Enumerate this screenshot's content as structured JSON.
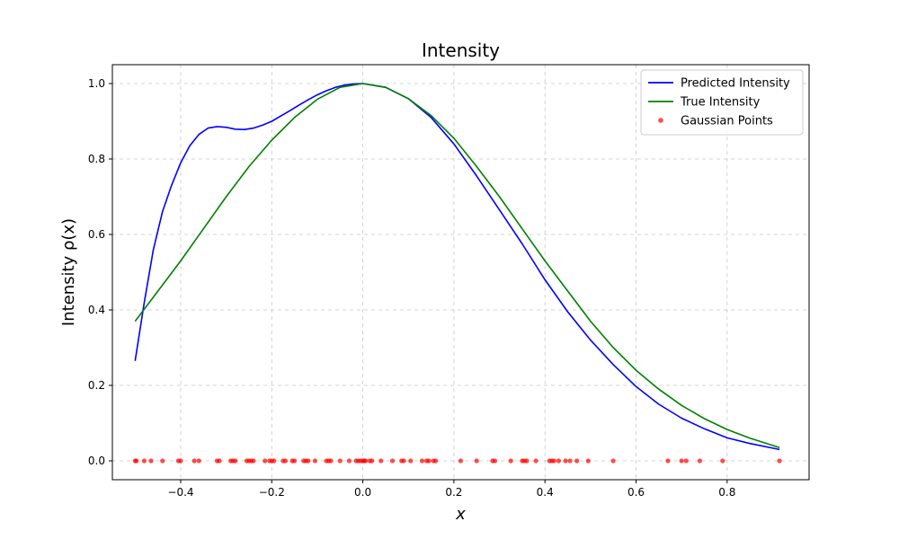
{
  "chart_data": {
    "type": "line",
    "title": "Intensity",
    "xlabel": "x",
    "ylabel": "Intensity ρ(x)",
    "xlim": [
      -0.55,
      0.98
    ],
    "ylim": [
      -0.05,
      1.05
    ],
    "x_ticks": [
      -0.4,
      -0.2,
      0.0,
      0.2,
      0.4,
      0.6,
      0.8
    ],
    "x_tick_labels": [
      "−0.4",
      "−0.2",
      "0.0",
      "0.2",
      "0.4",
      "0.6",
      "0.8"
    ],
    "y_ticks": [
      0.0,
      0.2,
      0.4,
      0.6,
      0.8,
      1.0
    ],
    "y_tick_labels": [
      "0.0",
      "0.2",
      "0.4",
      "0.6",
      "0.8",
      "1.0"
    ],
    "grid": true,
    "legend_position": "top-right",
    "series": [
      {
        "name": "Predicted Intensity",
        "color": "#0000ff",
        "kind": "line",
        "x": [
          -0.5,
          -0.48,
          -0.46,
          -0.44,
          -0.42,
          -0.4,
          -0.38,
          -0.36,
          -0.34,
          -0.32,
          -0.3,
          -0.28,
          -0.26,
          -0.24,
          -0.22,
          -0.2,
          -0.18,
          -0.16,
          -0.14,
          -0.12,
          -0.1,
          -0.08,
          -0.06,
          -0.04,
          -0.02,
          0.0,
          0.05,
          0.1,
          0.15,
          0.2,
          0.25,
          0.3,
          0.35,
          0.4,
          0.45,
          0.5,
          0.55,
          0.6,
          0.65,
          0.7,
          0.75,
          0.8,
          0.85,
          0.915
        ],
        "y": [
          0.265,
          0.42,
          0.56,
          0.66,
          0.73,
          0.79,
          0.835,
          0.865,
          0.882,
          0.886,
          0.884,
          0.879,
          0.878,
          0.882,
          0.89,
          0.9,
          0.914,
          0.928,
          0.943,
          0.957,
          0.97,
          0.981,
          0.99,
          0.996,
          0.999,
          1.0,
          0.99,
          0.96,
          0.91,
          0.84,
          0.755,
          0.665,
          0.575,
          0.48,
          0.395,
          0.32,
          0.255,
          0.197,
          0.15,
          0.113,
          0.085,
          0.061,
          0.046,
          0.03
        ]
      },
      {
        "name": "True Intensity",
        "color": "#008000",
        "kind": "line",
        "x": [
          -0.5,
          -0.45,
          -0.4,
          -0.35,
          -0.3,
          -0.25,
          -0.2,
          -0.15,
          -0.1,
          -0.05,
          0.0,
          0.05,
          0.1,
          0.15,
          0.2,
          0.25,
          0.3,
          0.35,
          0.4,
          0.45,
          0.5,
          0.55,
          0.6,
          0.65,
          0.7,
          0.75,
          0.8,
          0.85,
          0.915
        ],
        "y": [
          0.37,
          0.45,
          0.53,
          0.615,
          0.7,
          0.78,
          0.85,
          0.91,
          0.958,
          0.99,
          1.0,
          0.99,
          0.96,
          0.915,
          0.855,
          0.78,
          0.7,
          0.615,
          0.53,
          0.45,
          0.37,
          0.3,
          0.24,
          0.19,
          0.147,
          0.112,
          0.083,
          0.06,
          0.035
        ]
      },
      {
        "name": "Gaussian Points",
        "color": "#ff0000",
        "kind": "scatter",
        "x": [
          -0.5,
          -0.497,
          -0.48,
          -0.465,
          -0.44,
          -0.405,
          -0.4,
          -0.37,
          -0.36,
          -0.32,
          -0.315,
          -0.29,
          -0.285,
          -0.28,
          -0.255,
          -0.25,
          -0.245,
          -0.24,
          -0.215,
          -0.205,
          -0.2,
          -0.195,
          -0.175,
          -0.17,
          -0.155,
          -0.15,
          -0.13,
          -0.125,
          -0.12,
          -0.105,
          -0.08,
          -0.075,
          -0.07,
          -0.05,
          -0.03,
          -0.015,
          -0.01,
          -0.005,
          0.0,
          0.003,
          0.006,
          0.015,
          0.02,
          0.04,
          0.065,
          0.085,
          0.09,
          0.105,
          0.13,
          0.14,
          0.145,
          0.155,
          0.16,
          0.215,
          0.25,
          0.285,
          0.29,
          0.325,
          0.35,
          0.355,
          0.36,
          0.38,
          0.41,
          0.415,
          0.42,
          0.43,
          0.445,
          0.455,
          0.47,
          0.495,
          0.55,
          0.67,
          0.7,
          0.71,
          0.74,
          0.79,
          0.915
        ],
        "y": [
          0,
          0,
          0,
          0,
          0,
          0,
          0,
          0,
          0,
          0,
          0,
          0,
          0,
          0,
          0,
          0,
          0,
          0,
          0,
          0,
          0,
          0,
          0,
          0,
          0,
          0,
          0,
          0,
          0,
          0,
          0,
          0,
          0,
          0,
          0,
          0,
          0,
          0,
          0,
          0,
          0,
          0,
          0,
          0,
          0,
          0,
          0,
          0,
          0,
          0,
          0,
          0,
          0,
          0,
          0,
          0,
          0,
          0,
          0,
          0,
          0,
          0,
          0,
          0,
          0,
          0,
          0,
          0,
          0,
          0,
          0,
          0,
          0,
          0,
          0,
          0,
          0
        ]
      }
    ]
  }
}
